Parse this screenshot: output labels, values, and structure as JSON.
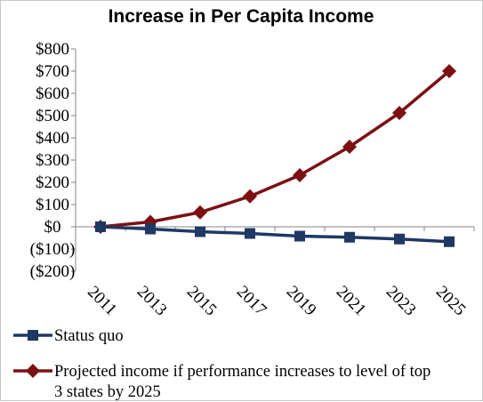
{
  "chart_data": {
    "type": "line",
    "title": "Increase in Per Capita Income",
    "xlabel": "",
    "ylabel": "",
    "x": [
      "2011",
      "2013",
      "2015",
      "2017",
      "2019",
      "2021",
      "2023",
      "2025"
    ],
    "yticks": [
      "$800",
      "$700",
      "$600",
      "$500",
      "$400",
      "$300",
      "$200",
      "$100",
      "$0",
      "($100)",
      "($200)"
    ],
    "ylim": [
      -200,
      800
    ],
    "grid": false,
    "legend_position": "bottom",
    "series": [
      {
        "name": "Status quo",
        "color": "#1f3864",
        "marker": "square",
        "values": [
          0,
          -10,
          -22,
          -30,
          -42,
          -47,
          -55,
          -67
        ]
      },
      {
        "name": "Projected income if performance increases to level of top 3 states by 2025",
        "legend_lines": [
          "Projected income if performance increases to level of top",
          "3 states by 2025"
        ],
        "color": "#7b1113",
        "marker": "diamond",
        "values": [
          0,
          22,
          65,
          137,
          232,
          360,
          512,
          700
        ]
      }
    ]
  }
}
